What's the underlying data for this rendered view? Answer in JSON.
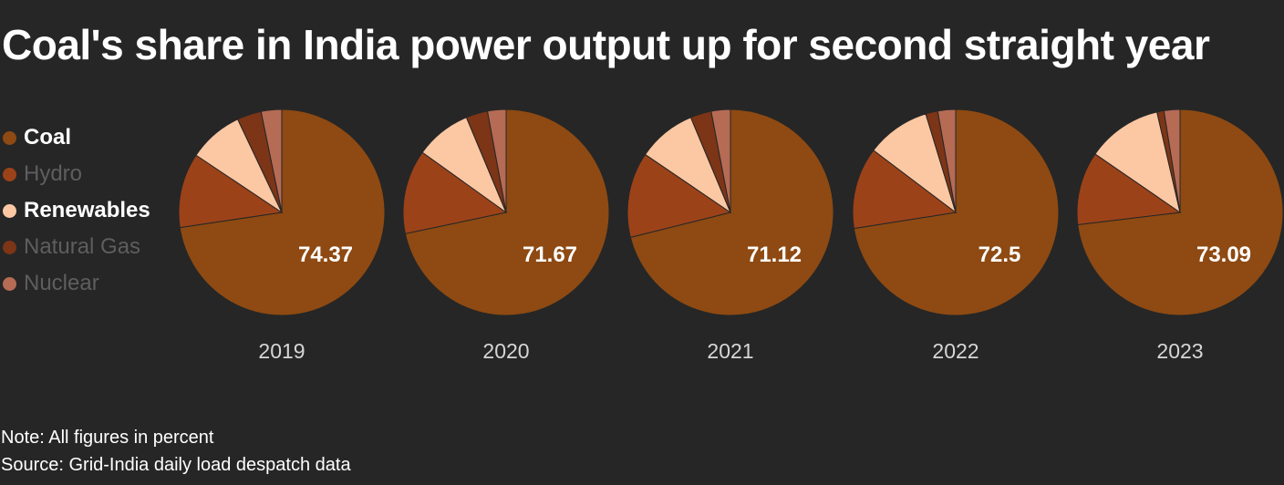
{
  "title": "Coal's share in India power output up for second straight year",
  "legend": [
    {
      "label": "Coal",
      "color": "#8e4a12",
      "style": "active"
    },
    {
      "label": "Hydro",
      "color": "#9c4219",
      "style": "muted"
    },
    {
      "label": "Renewables",
      "color": "#fcc8a3",
      "style": "active"
    },
    {
      "label": "Natural Gas",
      "color": "#7c3516",
      "style": "muted"
    },
    {
      "label": "Nuclear",
      "color": "#b66b55",
      "style": "muted"
    }
  ],
  "chart_data": {
    "type": "pie",
    "series_names": [
      "Coal",
      "Hydro",
      "Renewables",
      "Natural Gas",
      "Nuclear"
    ],
    "colors": [
      "#8e4a12",
      "#9c4219",
      "#fcc8a3",
      "#7c3516",
      "#b66b55"
    ],
    "pies": [
      {
        "year": "2019",
        "label": "74.37",
        "values": [
          74.37,
          12.0,
          8.8,
          3.9,
          3.3
        ]
      },
      {
        "year": "2020",
        "label": "71.67",
        "values": [
          71.67,
          13.2,
          8.8,
          3.4,
          2.9
        ]
      },
      {
        "year": "2021",
        "label": "71.12",
        "values": [
          71.12,
          13.4,
          9.2,
          3.3,
          3.0
        ]
      },
      {
        "year": "2022",
        "label": "72.5",
        "values": [
          72.5,
          12.8,
          10.0,
          1.9,
          2.8
        ]
      },
      {
        "year": "2023",
        "label": "73.09",
        "values": [
          73.09,
          11.5,
          11.8,
          1.1,
          2.5
        ]
      }
    ]
  },
  "notes": {
    "note": "Note: All figures in percent",
    "source": "Source: Grid-India daily load despatch data"
  }
}
